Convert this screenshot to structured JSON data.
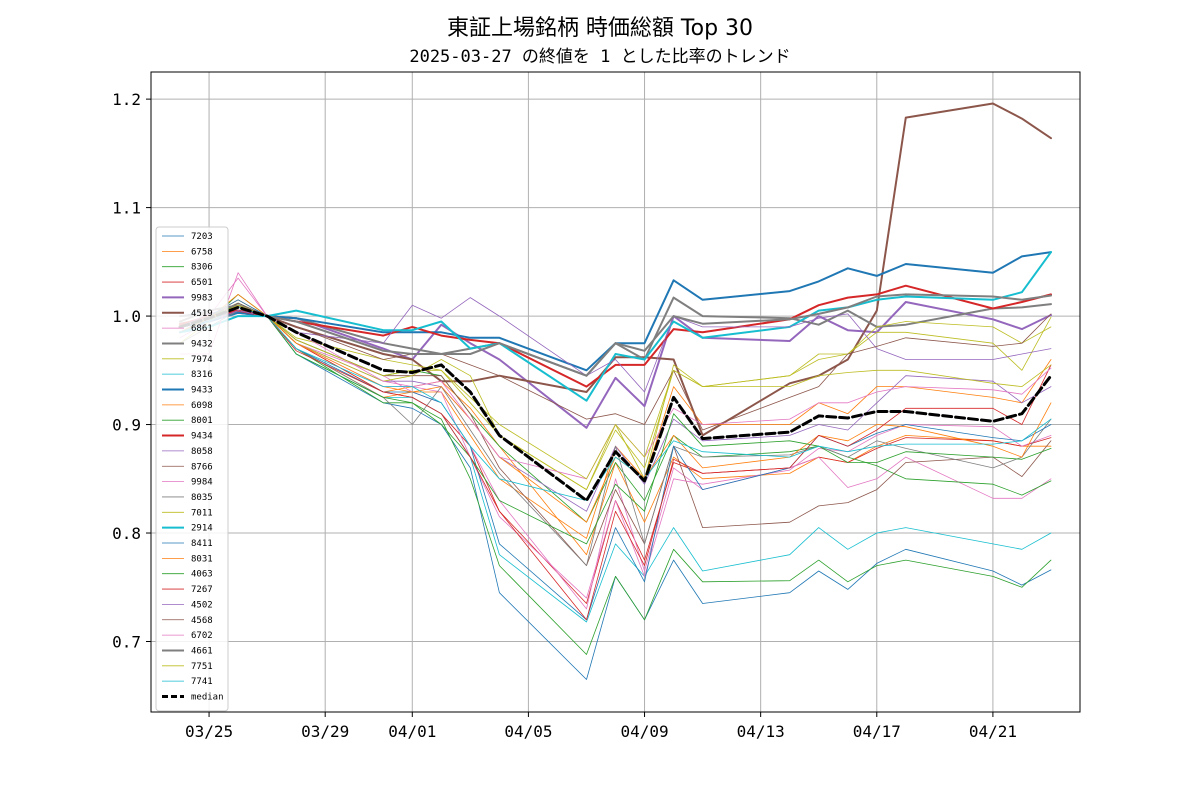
{
  "chart_data": {
    "type": "line",
    "title": "東証上場銘柄 時価総額 Top 30",
    "subtitle": "2025-03-27 の終値を 1 とした比率のトレンド",
    "xlabel": "",
    "ylabel": "",
    "x": [
      "03/24",
      "03/25",
      "03/26",
      "03/27",
      "03/28",
      "03/31",
      "04/01",
      "04/02",
      "04/03",
      "04/04",
      "04/07",
      "04/08",
      "04/09",
      "04/10",
      "04/11",
      "04/14",
      "04/15",
      "04/16",
      "04/17",
      "04/18",
      "04/21",
      "04/22",
      "04/23"
    ],
    "xlim": [
      "03/23",
      "04/24"
    ],
    "ylim": [
      0.635,
      1.225
    ],
    "x_ticks": [
      "03/25",
      "03/29",
      "04/01",
      "04/05",
      "04/09",
      "04/13",
      "04/17",
      "04/21"
    ],
    "y_ticks": [
      "0.7",
      "0.8",
      "0.9",
      "1.0",
      "1.1",
      "1.2"
    ],
    "grid": true,
    "legend_position": "center-left",
    "series": [
      {
        "name": "7203",
        "color": "#1f77b4",
        "width": 0.8,
        "values": [
          1.0,
          1.005,
          1.01,
          1.0,
          0.965,
          0.92,
          0.915,
          0.9,
          0.86,
          0.745,
          0.665,
          0.76,
          0.72,
          0.775,
          0.735,
          0.745,
          0.765,
          0.748,
          0.772,
          0.785,
          0.765,
          0.752,
          0.766
        ]
      },
      {
        "name": "6758",
        "color": "#ff7f0e",
        "width": 0.8,
        "values": [
          0.99,
          1.0,
          1.015,
          1.0,
          0.975,
          0.93,
          0.935,
          0.94,
          0.915,
          0.88,
          0.78,
          0.865,
          0.81,
          0.87,
          0.85,
          0.855,
          0.87,
          0.865,
          0.88,
          0.89,
          0.885,
          0.88,
          0.88
        ]
      },
      {
        "name": "8306",
        "color": "#2ca02c",
        "width": 0.8,
        "values": [
          0.985,
          0.995,
          1.02,
          1.0,
          0.97,
          0.92,
          0.92,
          0.905,
          0.85,
          0.77,
          0.688,
          0.76,
          0.72,
          0.785,
          0.755,
          0.756,
          0.775,
          0.755,
          0.77,
          0.775,
          0.76,
          0.75,
          0.775
        ]
      },
      {
        "name": "6501",
        "color": "#d62728",
        "width": 0.8,
        "values": [
          0.985,
          1.0,
          1.01,
          1.0,
          0.975,
          0.93,
          0.925,
          0.91,
          0.88,
          0.82,
          0.735,
          0.83,
          0.775,
          0.865,
          0.855,
          0.86,
          0.87,
          0.865,
          0.878,
          0.888,
          0.885,
          0.88,
          0.888
        ]
      },
      {
        "name": "9983",
        "color": "#9467bd",
        "width": 2.0,
        "values": [
          0.985,
          0.995,
          1.005,
          1.0,
          0.998,
          0.97,
          0.96,
          0.992,
          0.975,
          0.96,
          0.897,
          0.943,
          0.917,
          1.0,
          0.98,
          0.977,
          1.0,
          0.987,
          0.985,
          1.013,
          0.997,
          0.988,
          1.001
        ]
      },
      {
        "name": "4519",
        "color": "#8c564b",
        "width": 2.0,
        "values": [
          0.993,
          0.998,
          1.003,
          1.0,
          0.99,
          0.965,
          0.96,
          0.94,
          0.94,
          0.945,
          0.93,
          0.962,
          0.962,
          0.96,
          0.89,
          0.938,
          0.945,
          0.96,
          1.005,
          1.183,
          1.196,
          1.182,
          1.164
        ]
      },
      {
        "name": "6861",
        "color": "#e377c2",
        "width": 0.8,
        "values": [
          0.985,
          1.0,
          1.035,
          1.0,
          0.975,
          0.945,
          0.93,
          0.92,
          0.88,
          0.83,
          0.73,
          0.85,
          0.765,
          0.86,
          0.84,
          0.86,
          0.87,
          0.842,
          0.85,
          0.87,
          0.832,
          0.832,
          0.85
        ]
      },
      {
        "name": "9432",
        "color": "#7f7f7f",
        "width": 2.0,
        "values": [
          1.0,
          1.002,
          1.005,
          1.0,
          0.998,
          0.975,
          0.97,
          0.965,
          0.97,
          0.975,
          0.945,
          0.975,
          0.96,
          1.017,
          1.0,
          0.998,
          0.992,
          1.005,
          0.99,
          0.992,
          1.007,
          1.008,
          1.011
        ]
      },
      {
        "name": "7974",
        "color": "#bcbd22",
        "width": 0.8,
        "values": [
          0.99,
          1.0,
          1.01,
          1.0,
          0.98,
          0.96,
          0.955,
          0.95,
          0.92,
          0.89,
          0.84,
          0.9,
          0.85,
          0.955,
          0.935,
          0.945,
          0.96,
          0.965,
          0.99,
          0.995,
          0.99,
          0.975,
          0.99
        ]
      },
      {
        "name": "8316",
        "color": "#17becf",
        "width": 0.8,
        "values": [
          0.985,
          0.998,
          1.012,
          1.0,
          0.965,
          0.925,
          0.925,
          0.91,
          0.87,
          0.78,
          0.718,
          0.79,
          0.76,
          0.805,
          0.765,
          0.78,
          0.805,
          0.785,
          0.8,
          0.805,
          0.79,
          0.785,
          0.8
        ]
      },
      {
        "name": "9433",
        "color": "#1f77b4",
        "width": 2.0,
        "values": [
          0.99,
          0.995,
          1.003,
          1.0,
          0.998,
          0.985,
          0.985,
          0.985,
          0.98,
          0.98,
          0.95,
          0.975,
          0.975,
          1.033,
          1.015,
          1.023,
          1.032,
          1.044,
          1.037,
          1.048,
          1.04,
          1.055,
          1.059
        ]
      },
      {
        "name": "6098",
        "color": "#ff7f0e",
        "width": 0.8,
        "values": [
          0.985,
          0.998,
          1.02,
          1.0,
          0.97,
          0.925,
          0.93,
          0.93,
          0.89,
          0.85,
          0.795,
          0.88,
          0.85,
          0.935,
          0.9,
          0.9,
          0.92,
          0.91,
          0.935,
          0.935,
          0.925,
          0.92,
          0.96
        ]
      },
      {
        "name": "8001",
        "color": "#2ca02c",
        "width": 0.8,
        "values": [
          0.99,
          1.0,
          1.012,
          1.0,
          0.978,
          0.945,
          0.95,
          0.945,
          0.91,
          0.88,
          0.81,
          0.865,
          0.83,
          0.89,
          0.87,
          0.875,
          0.88,
          0.87,
          0.862,
          0.85,
          0.845,
          0.835,
          0.848
        ]
      },
      {
        "name": "9434",
        "color": "#d62728",
        "width": 2.0,
        "values": [
          0.992,
          1.0,
          1.005,
          1.0,
          0.995,
          0.982,
          0.99,
          0.982,
          0.978,
          0.975,
          0.935,
          0.955,
          0.955,
          0.988,
          0.985,
          0.997,
          1.01,
          1.017,
          1.02,
          1.028,
          1.007,
          1.013,
          1.02
        ]
      },
      {
        "name": "8058",
        "color": "#9467bd",
        "width": 0.8,
        "values": [
          0.99,
          1.002,
          1.01,
          1.0,
          0.975,
          0.94,
          0.94,
          0.935,
          0.905,
          0.87,
          0.82,
          0.88,
          0.845,
          0.905,
          0.885,
          0.89,
          0.9,
          0.895,
          0.92,
          0.945,
          0.94,
          0.92,
          0.935
        ]
      },
      {
        "name": "8766",
        "color": "#8c564b",
        "width": 0.8,
        "values": [
          0.99,
          1.0,
          1.01,
          1.0,
          0.978,
          0.945,
          0.945,
          0.945,
          0.91,
          0.86,
          0.77,
          0.84,
          0.79,
          0.88,
          0.805,
          0.81,
          0.825,
          0.828,
          0.84,
          0.865,
          0.87,
          0.852,
          0.885
        ]
      },
      {
        "name": "9984",
        "color": "#e377c2",
        "width": 0.8,
        "values": [
          0.98,
          0.995,
          1.005,
          1.0,
          0.975,
          0.935,
          0.935,
          0.93,
          0.87,
          0.815,
          0.74,
          0.83,
          0.76,
          0.85,
          0.845,
          0.858,
          0.878,
          0.875,
          0.89,
          0.9,
          0.898,
          0.88,
          0.89
        ]
      },
      {
        "name": "8035",
        "color": "#7f7f7f",
        "width": 0.8,
        "values": [
          0.975,
          0.99,
          1.005,
          1.0,
          0.97,
          0.925,
          0.9,
          0.935,
          0.895,
          0.855,
          0.77,
          0.88,
          0.79,
          0.88,
          0.87,
          0.872,
          0.88,
          0.87,
          0.885,
          0.878,
          0.86,
          0.87,
          0.905
        ]
      },
      {
        "name": "7011",
        "color": "#bcbd22",
        "width": 0.8,
        "values": [
          0.975,
          0.995,
          1.01,
          1.0,
          0.975,
          0.94,
          0.945,
          0.96,
          0.945,
          0.89,
          0.84,
          0.895,
          0.86,
          0.95,
          0.935,
          0.945,
          0.965,
          0.965,
          0.985,
          0.985,
          0.975,
          0.95,
          0.999
        ]
      },
      {
        "name": "2914",
        "color": "#17becf",
        "width": 2.0,
        "values": [
          0.985,
          0.99,
          1.0,
          1.0,
          1.005,
          0.987,
          0.987,
          0.995,
          0.97,
          0.975,
          0.922,
          0.965,
          0.96,
          0.995,
          0.98,
          0.99,
          1.005,
          1.008,
          1.015,
          1.018,
          1.015,
          1.022,
          1.059
        ]
      },
      {
        "name": "8411",
        "color": "#1f77b4",
        "width": 0.8,
        "values": [
          0.99,
          1.0,
          1.015,
          1.0,
          0.97,
          0.93,
          0.93,
          0.92,
          0.88,
          0.79,
          0.72,
          0.805,
          0.755,
          0.88,
          0.84,
          0.86,
          0.89,
          0.88,
          0.892,
          0.9,
          0.888,
          0.885,
          0.9
        ]
      },
      {
        "name": "8031",
        "color": "#ff7f0e",
        "width": 0.8,
        "values": [
          0.985,
          0.998,
          1.01,
          1.0,
          0.975,
          0.935,
          0.93,
          0.935,
          0.905,
          0.87,
          0.81,
          0.87,
          0.85,
          0.89,
          0.86,
          0.87,
          0.89,
          0.885,
          0.9,
          0.898,
          0.88,
          0.87,
          0.92
        ]
      },
      {
        "name": "4063",
        "color": "#2ca02c",
        "width": 0.8,
        "values": [
          0.99,
          1.0,
          1.01,
          1.0,
          0.965,
          0.925,
          0.92,
          0.9,
          0.87,
          0.83,
          0.79,
          0.845,
          0.82,
          0.91,
          0.88,
          0.885,
          0.88,
          0.865,
          0.865,
          0.875,
          0.87,
          0.868,
          0.878
        ]
      },
      {
        "name": "7267",
        "color": "#d62728",
        "width": 0.8,
        "values": [
          0.985,
          0.998,
          1.01,
          1.0,
          0.968,
          0.93,
          0.925,
          0.91,
          0.87,
          0.82,
          0.72,
          0.82,
          0.77,
          0.868,
          0.855,
          0.86,
          0.89,
          0.88,
          0.895,
          0.915,
          0.915,
          0.9,
          0.955
        ]
      },
      {
        "name": "4502",
        "color": "#9467bd",
        "width": 0.8,
        "values": [
          0.985,
          0.995,
          1.005,
          1.0,
          0.985,
          0.975,
          1.01,
          0.998,
          1.017,
          1.0,
          0.945,
          0.96,
          0.93,
          1.0,
          0.99,
          0.99,
          0.998,
          1.002,
          0.97,
          0.96,
          0.96,
          0.965,
          0.97
        ]
      },
      {
        "name": "4568",
        "color": "#8c564b",
        "width": 0.8,
        "values": [
          0.99,
          1.0,
          1.012,
          1.0,
          0.99,
          0.96,
          0.965,
          0.965,
          0.955,
          0.945,
          0.905,
          0.91,
          0.9,
          0.95,
          0.895,
          0.925,
          0.935,
          0.965,
          0.972,
          0.98,
          0.972,
          0.975,
          1.002
        ]
      },
      {
        "name": "6702",
        "color": "#e377c2",
        "width": 0.8,
        "values": [
          0.965,
          0.965,
          1.04,
          1.0,
          0.985,
          0.94,
          0.935,
          0.94,
          0.905,
          0.87,
          0.85,
          0.9,
          0.87,
          0.915,
          0.9,
          0.905,
          0.92,
          0.92,
          0.93,
          0.935,
          0.932,
          0.928,
          0.952
        ]
      },
      {
        "name": "4661",
        "color": "#7f7f7f",
        "width": 2.0,
        "values": [
          0.995,
          1.005,
          1.01,
          1.0,
          0.995,
          0.968,
          0.965,
          0.965,
          0.965,
          0.975,
          0.945,
          0.975,
          0.968,
          1.0,
          0.993,
          0.997,
          1.002,
          1.008,
          1.018,
          1.02,
          1.018,
          1.015,
          1.019
        ]
      },
      {
        "name": "7751",
        "color": "#bcbd22",
        "width": 0.8,
        "values": [
          0.985,
          0.998,
          1.01,
          1.0,
          0.978,
          0.945,
          0.95,
          0.95,
          0.925,
          0.9,
          0.85,
          0.9,
          0.87,
          0.95,
          0.935,
          0.935,
          0.945,
          0.948,
          0.95,
          0.95,
          0.938,
          0.935,
          0.955
        ]
      },
      {
        "name": "7741",
        "color": "#17becf",
        "width": 0.8,
        "values": [
          0.985,
          0.995,
          1.008,
          1.0,
          0.97,
          0.935,
          0.935,
          0.92,
          0.88,
          0.85,
          0.83,
          0.87,
          0.85,
          0.885,
          0.875,
          0.87,
          0.88,
          0.875,
          0.88,
          0.882,
          0.882,
          0.885,
          0.905
        ]
      },
      {
        "name": "median",
        "color": "#000000",
        "width": 3.0,
        "dashed": true,
        "values": [
          0.99,
          0.998,
          1.008,
          1.0,
          0.985,
          0.95,
          0.948,
          0.955,
          0.93,
          0.89,
          0.83,
          0.875,
          0.848,
          0.925,
          0.887,
          0.893,
          0.908,
          0.906,
          0.912,
          0.912,
          0.903,
          0.91,
          0.945
        ]
      }
    ]
  }
}
